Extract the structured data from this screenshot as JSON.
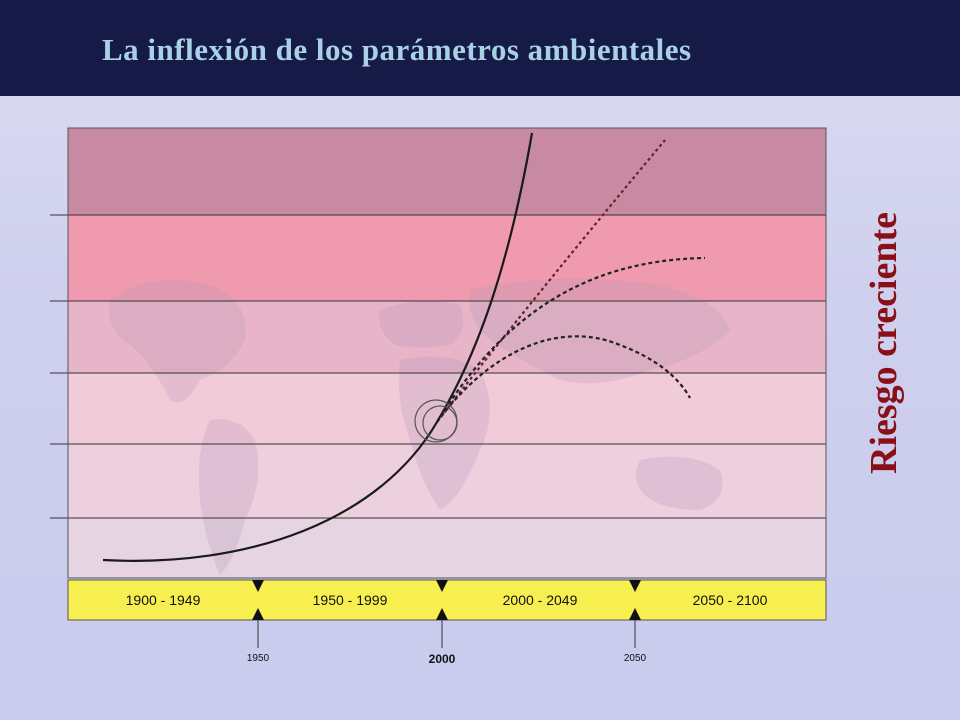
{
  "header": {
    "title": "La inflexión de los parámetros ambientales"
  },
  "side_label": "Riesgo creciente",
  "colors": {
    "header_bg": "#161a47",
    "title": "#a9d1e6",
    "side_label": "#8a1018",
    "timeline_bar": "#f7ef4f",
    "band_top": "#c88aa2",
    "band_2": "#ef9aae",
    "band_3": "#e8b4c8",
    "band_4": "#f2cbd9",
    "band_5": "#ecd0de",
    "band_6": "#e6d4e3"
  },
  "timeline": {
    "periods": [
      "1900 - 1949",
      "1950 - 1999",
      "2000 - 2049",
      "2050 - 2100"
    ],
    "markers": [
      {
        "label": "1950",
        "emphasis": false
      },
      {
        "label": "2000",
        "emphasis": true
      },
      {
        "label": "2050",
        "emphasis": false
      }
    ]
  },
  "curves": {
    "main": "solid",
    "scenarios": [
      "dotted",
      "dashed",
      "dashed",
      "dashed"
    ]
  }
}
